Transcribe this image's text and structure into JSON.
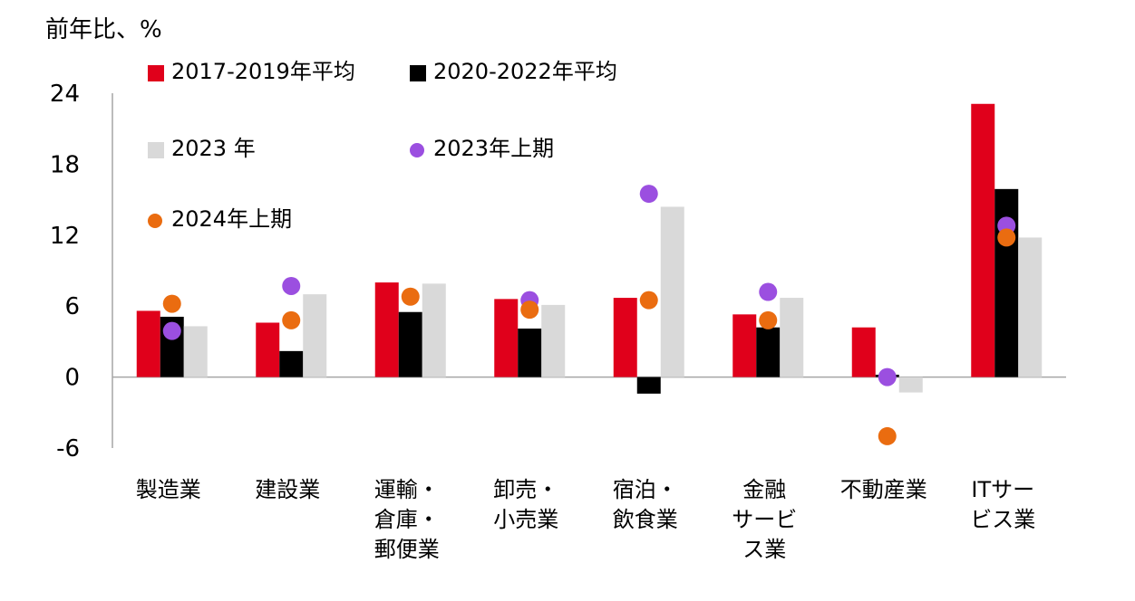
{
  "chart_data": {
    "type": "bar",
    "ylabel": "前年比、%",
    "ylim": [
      -6,
      24
    ],
    "yticks": [
      "24",
      "18",
      "12",
      "6",
      "0",
      "-6"
    ],
    "categories": [
      [
        "製造業"
      ],
      [
        "建設業"
      ],
      [
        "運輸・",
        "倉庫・",
        "郵便業"
      ],
      [
        "卸売・",
        "小売業"
      ],
      [
        "宿泊・",
        "飲食業"
      ],
      [
        "金融",
        "サービ",
        "ス業"
      ],
      [
        "不動産業"
      ],
      [
        "ITサー",
        "ビス業"
      ]
    ],
    "series": [
      {
        "name": "2017-2019年平均",
        "kind": "bar",
        "color": "#e0001b",
        "values": [
          5.6,
          4.6,
          8.0,
          6.6,
          6.7,
          5.3,
          4.2,
          23.1
        ]
      },
      {
        "name": "2020-2022年平均",
        "kind": "bar",
        "color": "#000000",
        "values": [
          5.1,
          2.2,
          5.5,
          4.1,
          -1.4,
          4.2,
          0.2,
          15.9
        ]
      },
      {
        "name": "2023 年",
        "kind": "bar",
        "color": "#d9d9d9",
        "values": [
          4.3,
          7.0,
          7.9,
          6.1,
          14.4,
          6.7,
          -1.3,
          11.8
        ]
      },
      {
        "name": "2023年上期",
        "kind": "dot",
        "color": "#9b4fe0",
        "values": [
          3.9,
          7.7,
          null,
          6.5,
          15.5,
          7.2,
          0.0,
          12.8
        ]
      },
      {
        "name": "2024年上期",
        "kind": "dot",
        "color": "#ea6c10",
        "values": [
          6.2,
          4.8,
          6.8,
          5.7,
          6.5,
          4.8,
          -5.0,
          11.8
        ]
      }
    ],
    "legend": "top-left, inside"
  }
}
